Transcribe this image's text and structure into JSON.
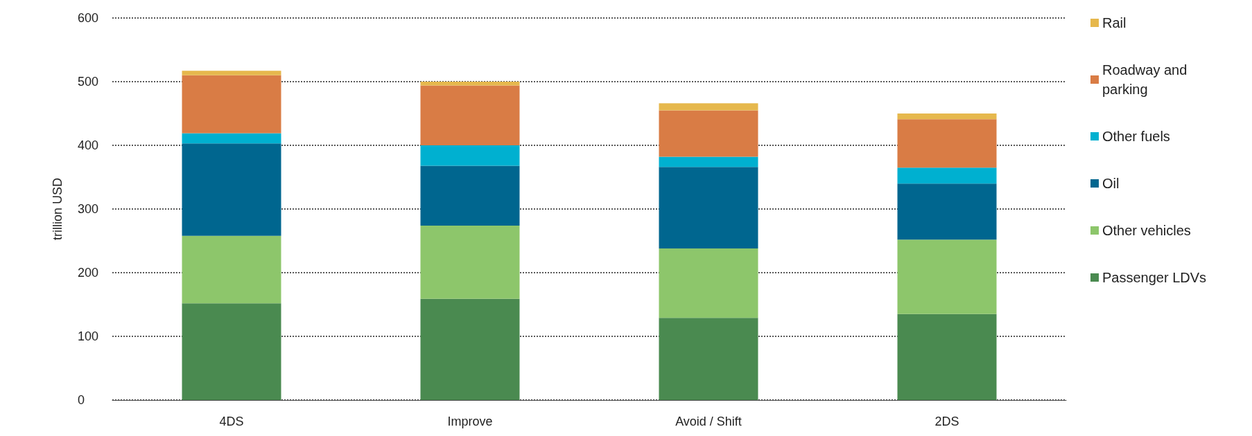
{
  "chart_data": {
    "type": "bar",
    "stacked": true,
    "ylabel": "trillion USD",
    "categories": [
      "4DS",
      "Improve",
      "Avoid / Shift",
      "2DS"
    ],
    "series": [
      {
        "name": "Passenger LDVs",
        "color": "#4a8a50",
        "values": [
          152,
          159,
          129,
          135
        ]
      },
      {
        "name": "Other vehicles",
        "color": "#8dc66b",
        "values": [
          106,
          115,
          109,
          117
        ]
      },
      {
        "name": "Oil",
        "color": "#00668f",
        "values": [
          145,
          94,
          128,
          88
        ]
      },
      {
        "name": "Other fuels",
        "color": "#00b0d0",
        "values": [
          16,
          32,
          16,
          25
        ]
      },
      {
        "name": "Roadway and parking",
        "color": "#d97c45",
        "values": [
          91,
          94,
          73,
          76
        ]
      },
      {
        "name": "Rail",
        "color": "#e6b84d",
        "values": [
          7,
          6,
          11,
          9
        ]
      }
    ],
    "ylim": [
      0,
      600
    ],
    "yticks": [
      0,
      100,
      200,
      300,
      400,
      500,
      600
    ],
    "grid": "y",
    "legend": "right"
  }
}
